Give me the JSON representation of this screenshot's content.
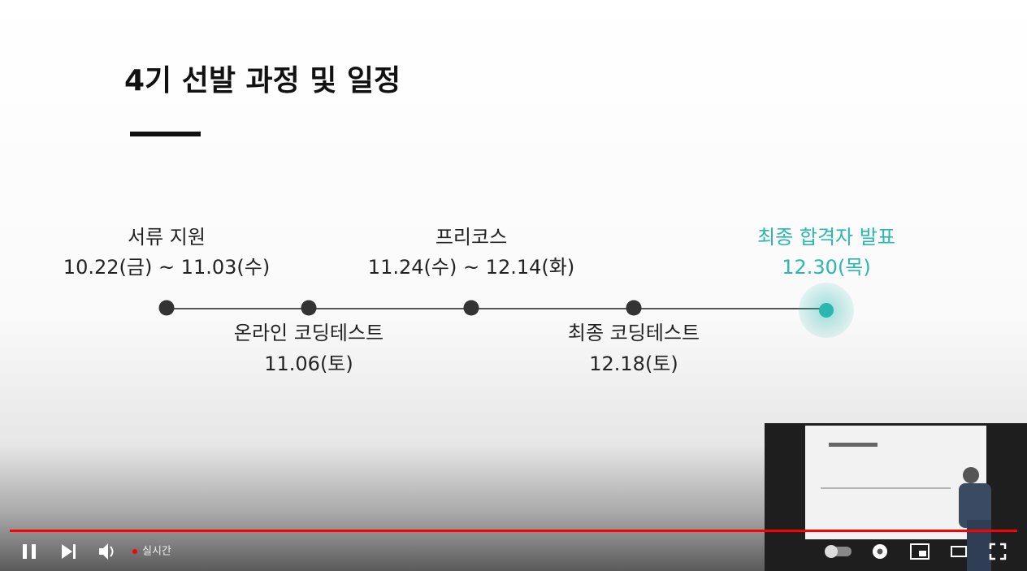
{
  "slide": {
    "title": "4기 선발 과정 및 일정",
    "steps": [
      {
        "label": "서류 지원",
        "date": "10.22(금) ~ 11.03(수)"
      },
      {
        "label": "온라인 코딩테스트",
        "date": "11.06(토)"
      },
      {
        "label": "프리코스",
        "date": "11.24(수) ~ 12.14(화)"
      },
      {
        "label": "최종 코딩테스트",
        "date": "12.18(토)"
      },
      {
        "label": "최종 합격자 발표",
        "date": "12.30(목)"
      }
    ]
  },
  "player": {
    "live_label": "실시간"
  }
}
